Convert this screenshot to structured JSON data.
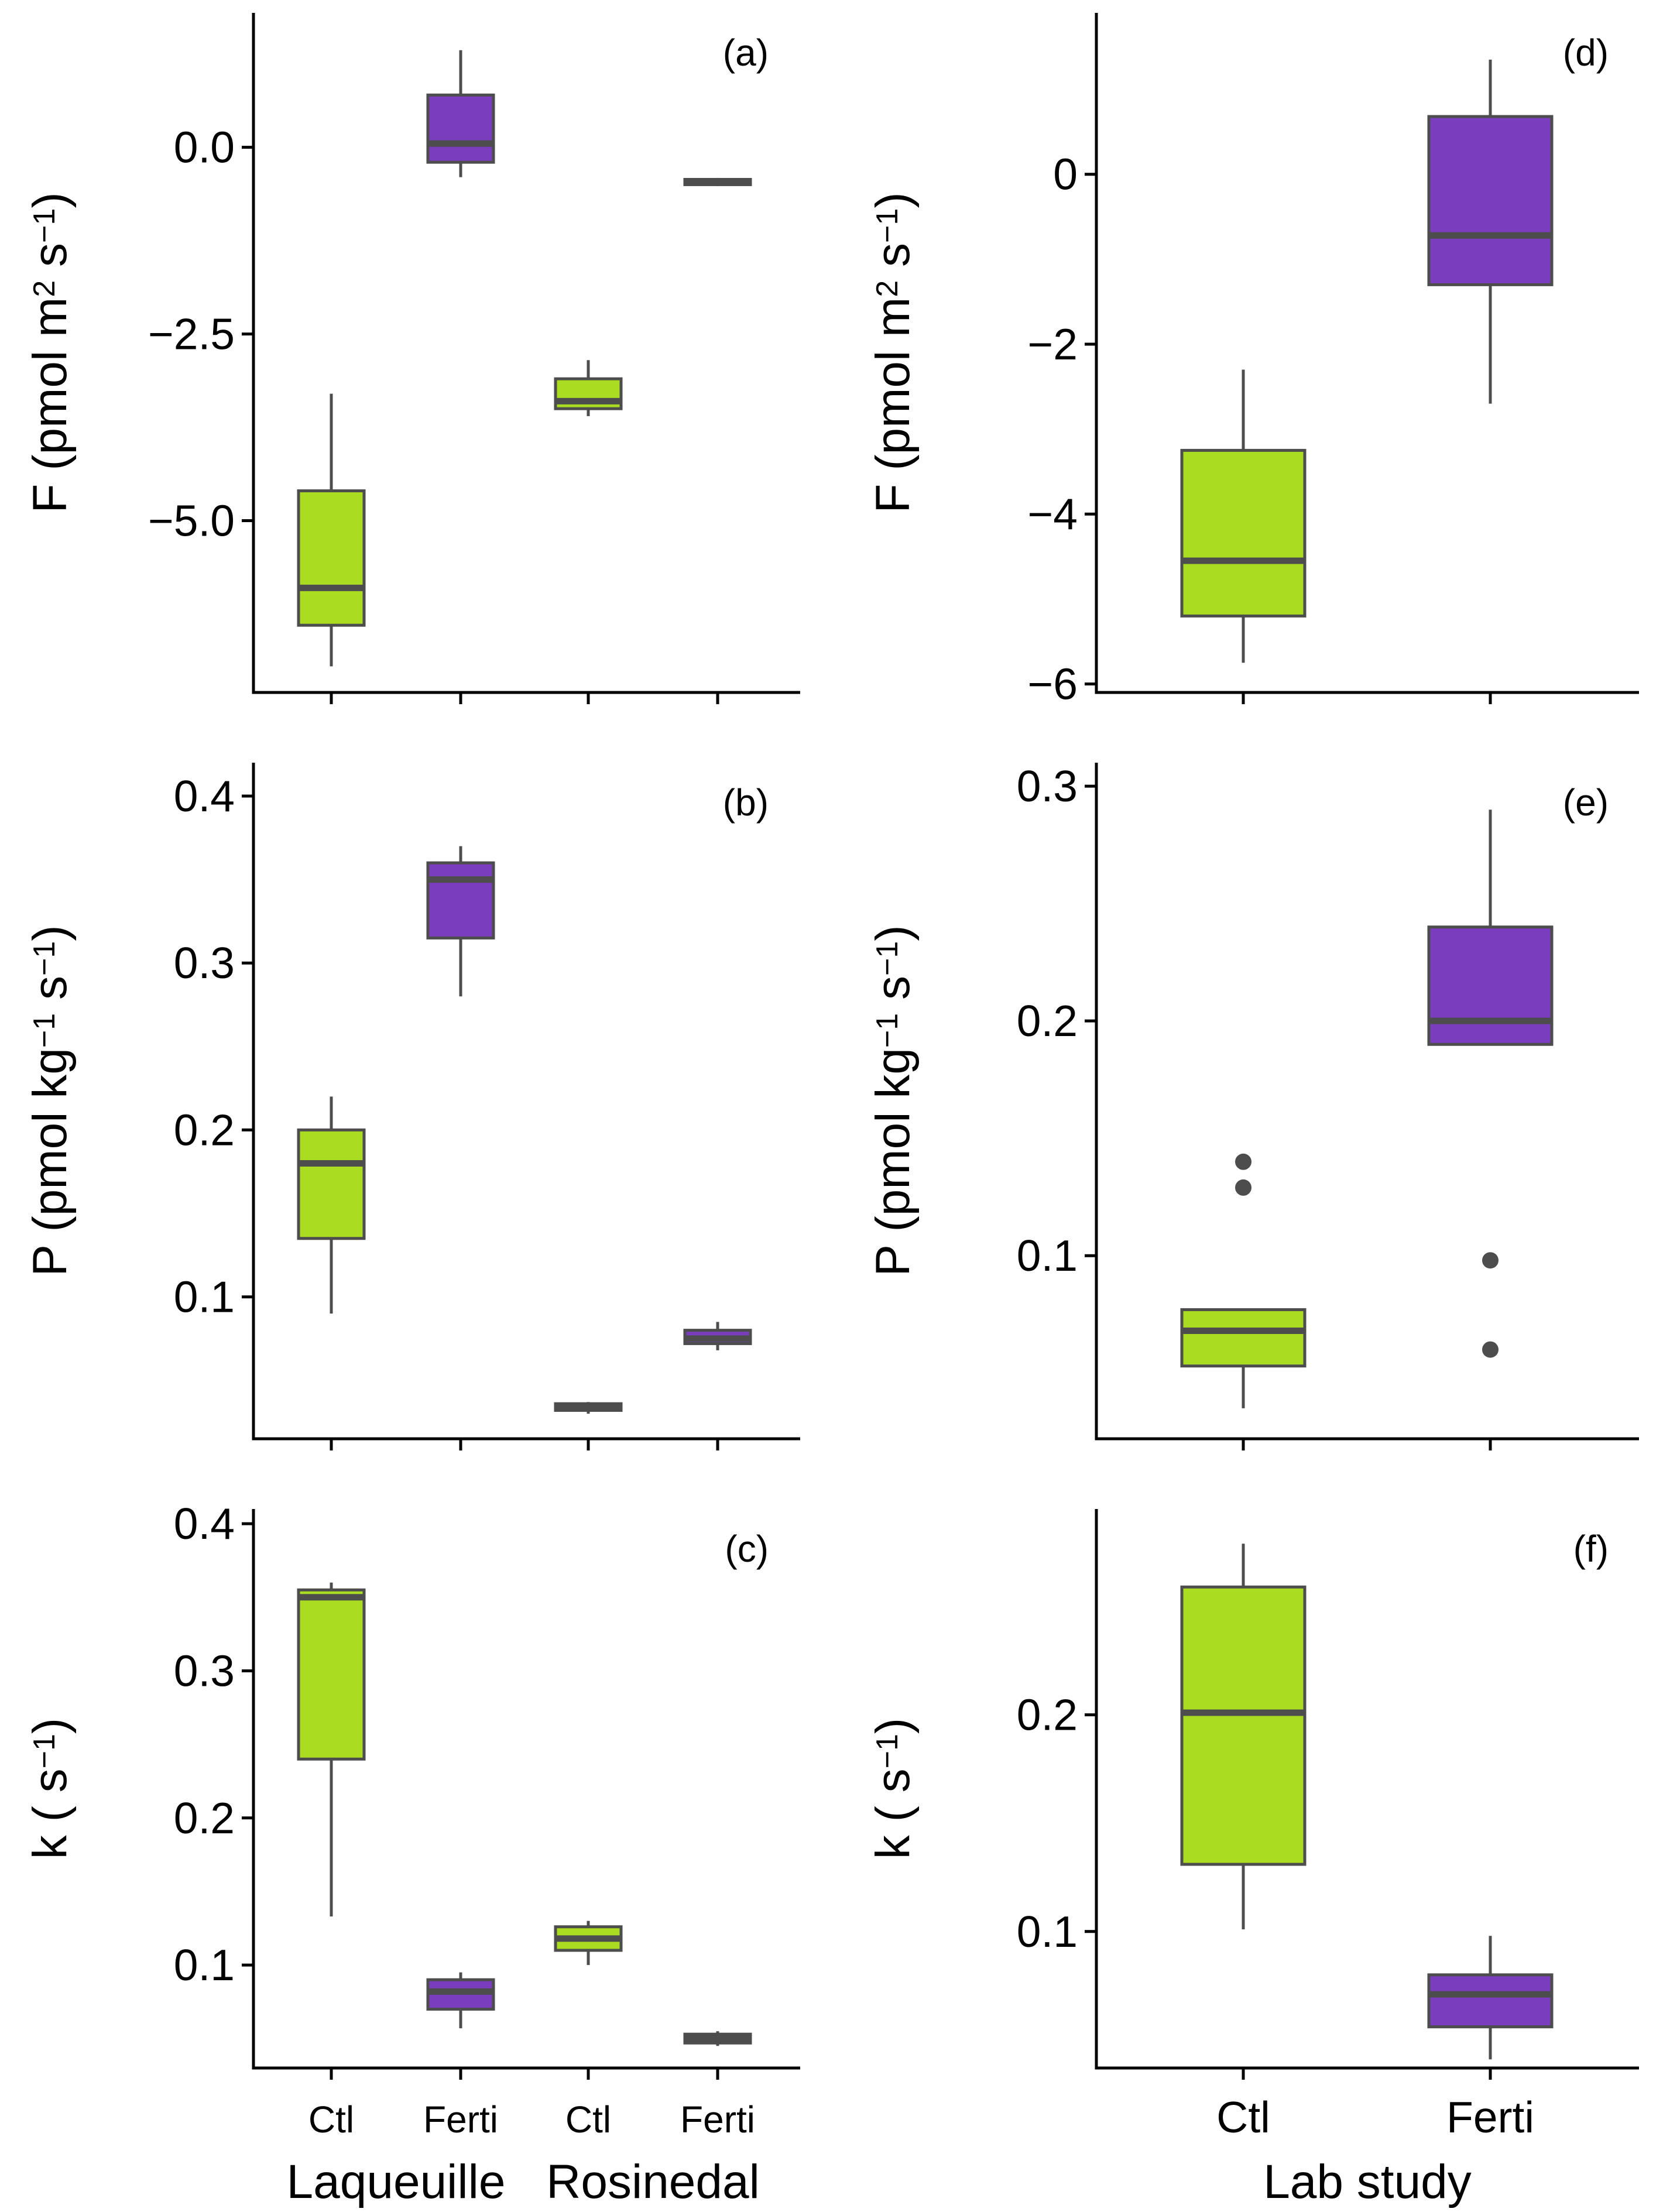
{
  "chart_data": [
    {
      "panel": "(a)",
      "type": "boxplot",
      "ylabel": {
        "base": "F (pmol m",
        "sup1": "2",
        "mid": " s",
        "sup2": "−1",
        "end": ")"
      },
      "ylim": [
        -7.3,
        1.8
      ],
      "yticks": [
        {
          "v": 0.0,
          "label": "0.0"
        },
        {
          "v": -2.5,
          "label": "−2.5"
        },
        {
          "v": -5.0,
          "label": "−5.0"
        }
      ],
      "categories": [
        "Ctl",
        "Ferti",
        "Ctl",
        "Ferti"
      ],
      "groups": [
        {
          "label": "Laqueuille",
          "members": [
            0,
            1
          ]
        },
        {
          "label": "Rosinedal",
          "members": [
            2,
            3
          ]
        }
      ],
      "boxes": [
        {
          "category": "Ctl",
          "treatment": "Ctl",
          "whisker_low": -6.95,
          "q1": -6.4,
          "median": -5.9,
          "q3": -4.6,
          "whisker_high": -3.3,
          "outliers": []
        },
        {
          "category": "Ferti",
          "treatment": "Ferti",
          "whisker_low": -0.4,
          "q1": -0.2,
          "median": 0.05,
          "q3": 0.7,
          "whisker_high": 1.3,
          "outliers": []
        },
        {
          "category": "Ctl",
          "treatment": "Ctl",
          "whisker_low": -3.6,
          "q1": -3.5,
          "median": -3.4,
          "q3": -3.1,
          "whisker_high": -2.85,
          "outliers": []
        },
        {
          "category": "Ferti",
          "treatment": "Ferti",
          "whisker_low": -0.52,
          "q1": -0.5,
          "median": -0.47,
          "q3": -0.43,
          "whisker_high": -0.41,
          "outliers": []
        }
      ]
    },
    {
      "panel": "(b)",
      "type": "boxplot",
      "ylabel": {
        "base": "P (pmol kg",
        "sup1": "−1",
        "mid": " s",
        "sup2": "−1",
        "end": ")"
      },
      "ylim": [
        0.015,
        0.42
      ],
      "yticks": [
        {
          "v": 0.1,
          "label": "0.1"
        },
        {
          "v": 0.2,
          "label": "0.2"
        },
        {
          "v": 0.3,
          "label": "0.3"
        },
        {
          "v": 0.4,
          "label": "0.4"
        }
      ],
      "categories": [
        "Ctl",
        "Ferti",
        "Ctl",
        "Ferti"
      ],
      "groups": [
        {
          "label": "Laqueuille",
          "members": [
            0,
            1
          ]
        },
        {
          "label": "Rosinedal",
          "members": [
            2,
            3
          ]
        }
      ],
      "boxes": [
        {
          "category": "Ctl",
          "treatment": "Ctl",
          "whisker_low": 0.09,
          "q1": 0.135,
          "median": 0.18,
          "q3": 0.2,
          "whisker_high": 0.22,
          "outliers": []
        },
        {
          "category": "Ferti",
          "treatment": "Ferti",
          "whisker_low": 0.28,
          "q1": 0.315,
          "median": 0.35,
          "q3": 0.36,
          "whisker_high": 0.37,
          "outliers": []
        },
        {
          "category": "Ctl",
          "treatment": "Ctl",
          "whisker_low": 0.03,
          "q1": 0.032,
          "median": 0.034,
          "q3": 0.036,
          "whisker_high": 0.037,
          "outliers": []
        },
        {
          "category": "Ferti",
          "treatment": "Ferti",
          "whisker_low": 0.068,
          "q1": 0.072,
          "median": 0.075,
          "q3": 0.08,
          "whisker_high": 0.085,
          "outliers": []
        }
      ]
    },
    {
      "panel": "(c)",
      "type": "boxplot",
      "ylabel": {
        "base": "k ( s",
        "sup1": "",
        "mid": "",
        "sup2": "−1",
        "end": ")"
      },
      "ylim": [
        0.03,
        0.41
      ],
      "yticks": [
        {
          "v": 0.1,
          "label": "0.1"
        },
        {
          "v": 0.2,
          "label": "0.2"
        },
        {
          "v": 0.3,
          "label": "0.3"
        },
        {
          "v": 0.4,
          "label": "0.4"
        }
      ],
      "categories": [
        "Ctl",
        "Ferti",
        "Ctl",
        "Ferti"
      ],
      "groups": [
        {
          "label": "Laqueuille",
          "members": [
            0,
            1
          ]
        },
        {
          "label": "Rosinedal",
          "members": [
            2,
            3
          ]
        }
      ],
      "boxes": [
        {
          "category": "Ctl",
          "treatment": "Ctl",
          "whisker_low": 0.133,
          "q1": 0.24,
          "median": 0.35,
          "q3": 0.355,
          "whisker_high": 0.36,
          "outliers": []
        },
        {
          "category": "Ferti",
          "treatment": "Ferti",
          "whisker_low": 0.057,
          "q1": 0.07,
          "median": 0.082,
          "q3": 0.09,
          "whisker_high": 0.095,
          "outliers": []
        },
        {
          "category": "Ctl",
          "treatment": "Ctl",
          "whisker_low": 0.1,
          "q1": 0.11,
          "median": 0.118,
          "q3": 0.126,
          "whisker_high": 0.13,
          "outliers": []
        },
        {
          "category": "Ferti",
          "treatment": "Ferti",
          "whisker_low": 0.045,
          "q1": 0.047,
          "median": 0.05,
          "q3": 0.053,
          "whisker_high": 0.055,
          "outliers": []
        }
      ]
    },
    {
      "panel": "(d)",
      "type": "boxplot",
      "ylabel": {
        "base": "F (pmol m",
        "sup1": "2",
        "mid": " s",
        "sup2": "−1",
        "end": ")"
      },
      "ylim": [
        -6.1,
        1.9
      ],
      "yticks": [
        {
          "v": 0,
          "label": "0"
        },
        {
          "v": -2,
          "label": "−2"
        },
        {
          "v": -4,
          "label": "−4"
        },
        {
          "v": -6,
          "label": "−6"
        }
      ],
      "categories": [
        "Ctl",
        "Ferti"
      ],
      "groups": [],
      "boxes": [
        {
          "category": "Ctl",
          "treatment": "Ctl",
          "whisker_low": -5.75,
          "q1": -5.2,
          "median": -4.55,
          "q3": -3.25,
          "whisker_high": -2.3,
          "outliers": []
        },
        {
          "category": "Ferti",
          "treatment": "Ferti",
          "whisker_low": -2.7,
          "q1": -1.3,
          "median": -0.72,
          "q3": 0.68,
          "whisker_high": 1.35,
          "outliers": []
        }
      ]
    },
    {
      "panel": "(e)",
      "type": "boxplot",
      "ylabel": {
        "base": "P (pmol kg",
        "sup1": "−1",
        "mid": " s",
        "sup2": "−1",
        "end": ")"
      },
      "ylim": [
        0.022,
        0.31
      ],
      "yticks": [
        {
          "v": 0.1,
          "label": "0.1"
        },
        {
          "v": 0.2,
          "label": "0.2"
        },
        {
          "v": 0.3,
          "label": "0.3"
        }
      ],
      "categories": [
        "Ctl",
        "Ferti"
      ],
      "groups": [],
      "boxes": [
        {
          "category": "Ctl",
          "treatment": "Ctl",
          "whisker_low": 0.035,
          "q1": 0.053,
          "median": 0.068,
          "q3": 0.077,
          "whisker_high": 0.077,
          "outliers": [
            0.14,
            0.129
          ]
        },
        {
          "category": "Ferti",
          "treatment": "Ferti",
          "whisker_low": 0.19,
          "q1": 0.19,
          "median": 0.2,
          "q3": 0.24,
          "whisker_high": 0.29,
          "outliers": [
            0.098,
            0.06
          ]
        }
      ]
    },
    {
      "panel": "(f)",
      "type": "boxplot",
      "ylabel": {
        "base": "k ( s",
        "sup1": "",
        "mid": "",
        "sup2": "−1",
        "end": ")"
      },
      "ylim": [
        0.037,
        0.295
      ],
      "yticks": [
        {
          "v": 0.1,
          "label": "0.1"
        },
        {
          "v": 0.2,
          "label": "0.2"
        }
      ],
      "categories": [
        "Ctl",
        "Ferti"
      ],
      "groups": [],
      "boxes": [
        {
          "category": "Ctl",
          "treatment": "Ctl",
          "whisker_low": 0.101,
          "q1": 0.131,
          "median": 0.201,
          "q3": 0.259,
          "whisker_high": 0.279,
          "outliers": []
        },
        {
          "category": "Ferti",
          "treatment": "Ferti",
          "whisker_low": 0.041,
          "q1": 0.056,
          "median": 0.071,
          "q3": 0.08,
          "whisker_high": 0.098,
          "outliers": []
        }
      ]
    }
  ],
  "x_titles": {
    "right": "Lab study"
  },
  "colors": {
    "Ctl": "#aadd22",
    "Ferti": "#7a3dbd",
    "line": "#4d4d4d",
    "axis": "#000000",
    "outlier": "#4d4d4d"
  }
}
